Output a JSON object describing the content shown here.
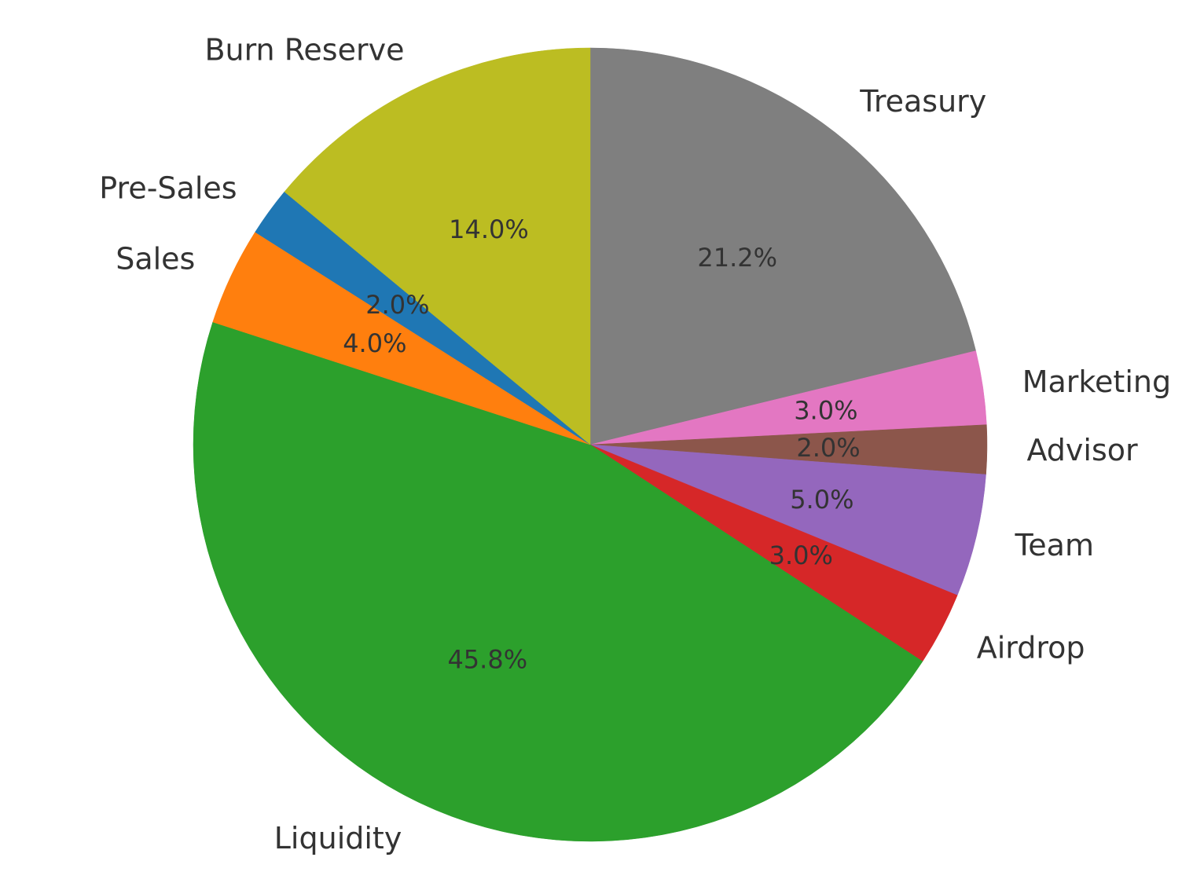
{
  "chart_data": {
    "type": "pie",
    "start_angle_deg": 90,
    "direction": "clockwise",
    "slices": [
      {
        "label": "Treasury",
        "value": 21.2,
        "pct_label": "21.2%",
        "color": "#7f7f7f"
      },
      {
        "label": "Marketing",
        "value": 3.0,
        "pct_label": "3.0%",
        "color": "#e377c2"
      },
      {
        "label": "Advisor",
        "value": 2.0,
        "pct_label": "2.0%",
        "color": "#8c564b"
      },
      {
        "label": "Team",
        "value": 5.0,
        "pct_label": "5.0%",
        "color": "#9467bd"
      },
      {
        "label": "Airdrop",
        "value": 3.0,
        "pct_label": "3.0%",
        "color": "#d62728"
      },
      {
        "label": "Liquidity",
        "value": 45.8,
        "pct_label": "45.8%",
        "color": "#2ca02c"
      },
      {
        "label": "Sales",
        "value": 4.0,
        "pct_label": "4.0%",
        "color": "#ff7f0e"
      },
      {
        "label": "Pre-Sales",
        "value": 2.0,
        "pct_label": "2.0%",
        "color": "#1f77b4"
      },
      {
        "label": "Burn Reserve",
        "value": 14.0,
        "pct_label": "14.0%",
        "color": "#bcbd22"
      }
    ]
  }
}
